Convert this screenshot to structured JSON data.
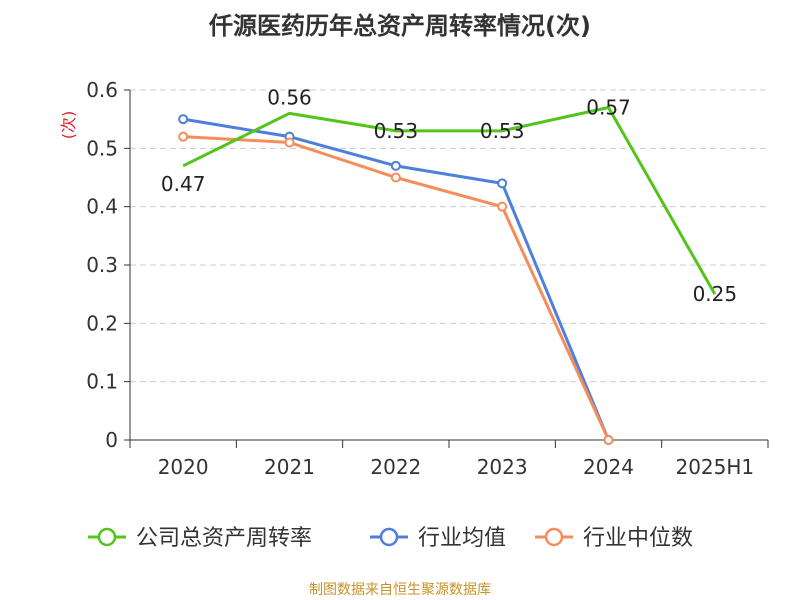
{
  "chart_data": {
    "type": "line",
    "title": "仟源医药历年总资产周转率情况(次)",
    "ylabel": "(次)",
    "xlabel": "",
    "ylim": [
      0,
      0.6
    ],
    "yticks": [
      0,
      0.1,
      0.2,
      0.3,
      0.4,
      0.5,
      0.6
    ],
    "ytick_labels": [
      "0",
      "0.1",
      "0.2",
      "0.3",
      "0.4",
      "0.5",
      "0.6"
    ],
    "grid": true,
    "legend_position": "bottom",
    "categories": [
      "2020",
      "2021",
      "2022",
      "2023",
      "2024",
      "2025H1"
    ],
    "series": [
      {
        "name": "公司总资产周转率",
        "color": "#52c41a",
        "values": [
          0.47,
          0.56,
          0.53,
          0.53,
          0.57,
          0.25
        ],
        "labels": [
          "0.47",
          "0.56",
          "0.53",
          "0.53",
          "0.57",
          "0.25"
        ],
        "show_markers": false
      },
      {
        "name": "行业均值",
        "color": "#4f7fdc",
        "values": [
          0.55,
          0.52,
          0.47,
          0.44,
          0.0,
          null
        ],
        "show_markers": true
      },
      {
        "name": "行业中位数",
        "color": "#f58d5a",
        "values": [
          0.52,
          0.51,
          0.45,
          0.4,
          0.0,
          null
        ],
        "show_markers": true
      }
    ]
  },
  "source": "制图数据来自恒生聚源数据库",
  "colors": {
    "title": "#333333",
    "ylabel": "#e02020",
    "source": "#c8922a",
    "axis": "#333333",
    "grid": "#cccccc"
  }
}
